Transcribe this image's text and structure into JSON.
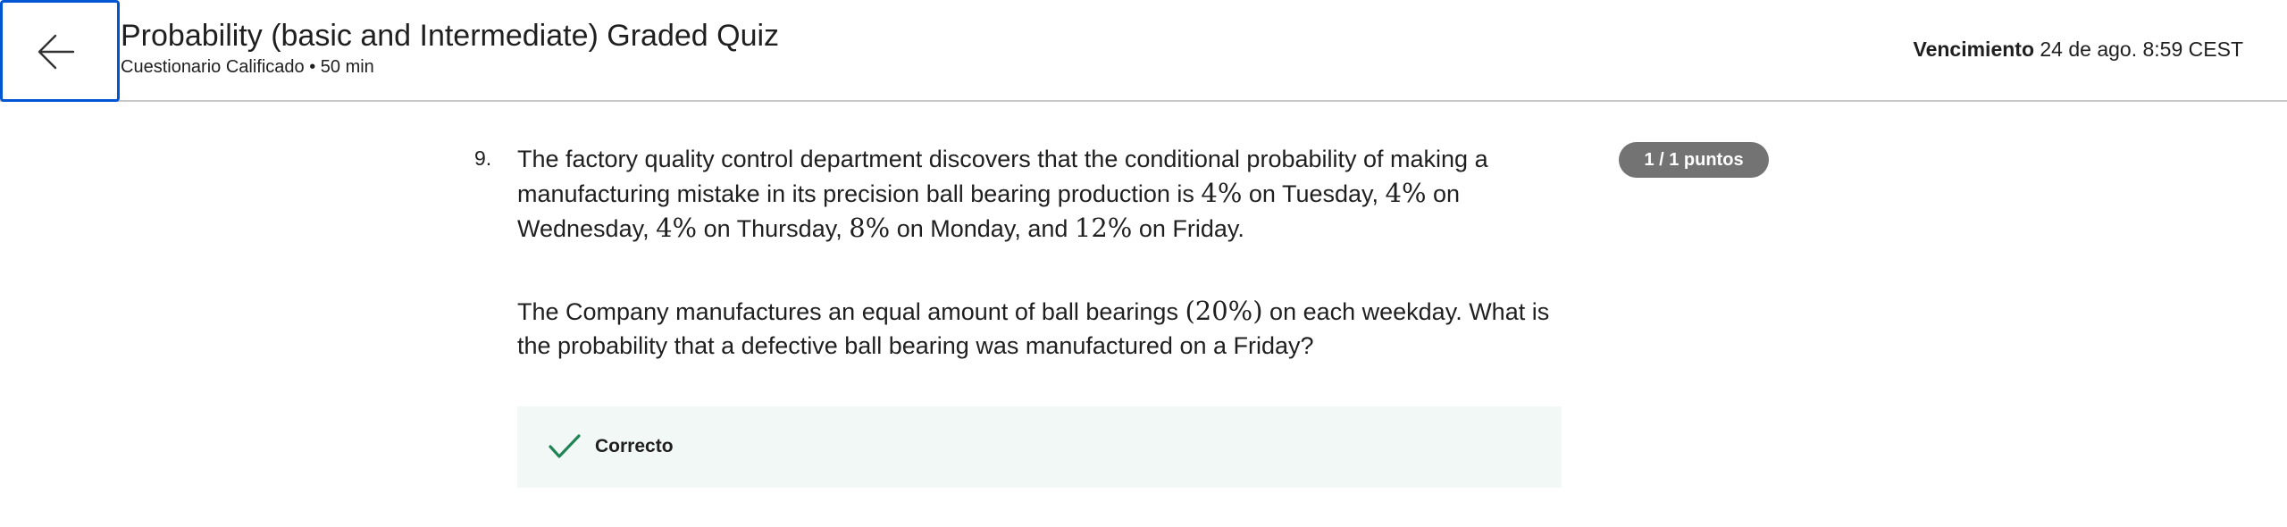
{
  "header": {
    "title": "Probability (basic and Intermediate) Graded Quiz",
    "subtitle": "Cuestionario Calificado • 50 min",
    "due_label": "Vencimiento",
    "due_value": "24 de ago. 8:59 CEST",
    "back_icon": "arrow-left-icon"
  },
  "question": {
    "number": "9.",
    "points": "1 / 1 puntos",
    "p1": {
      "t1": "The factory quality control department discovers that the conditional probability of making a manufacturing mistake in its precision ball bearing production is ",
      "m1": "4%",
      "t2": " on Tuesday, ",
      "m2": "4%",
      "t3": " on Wednesday, ",
      "m3": "4%",
      "t4": " on Thursday, ",
      "m4": "8%",
      "t5": " on Monday, and ",
      "m5": "12%",
      "t6": " on Friday."
    },
    "p2": {
      "t1": "The Company manufactures an equal amount of ball bearings ",
      "m1": "(20%)",
      "t2": " on each weekday. What is the probability that a defective ball bearing was manufactured on a Friday?"
    }
  },
  "feedback": {
    "label": "Correcto",
    "icon": "checkmark-icon",
    "color": "#1f8354"
  }
}
